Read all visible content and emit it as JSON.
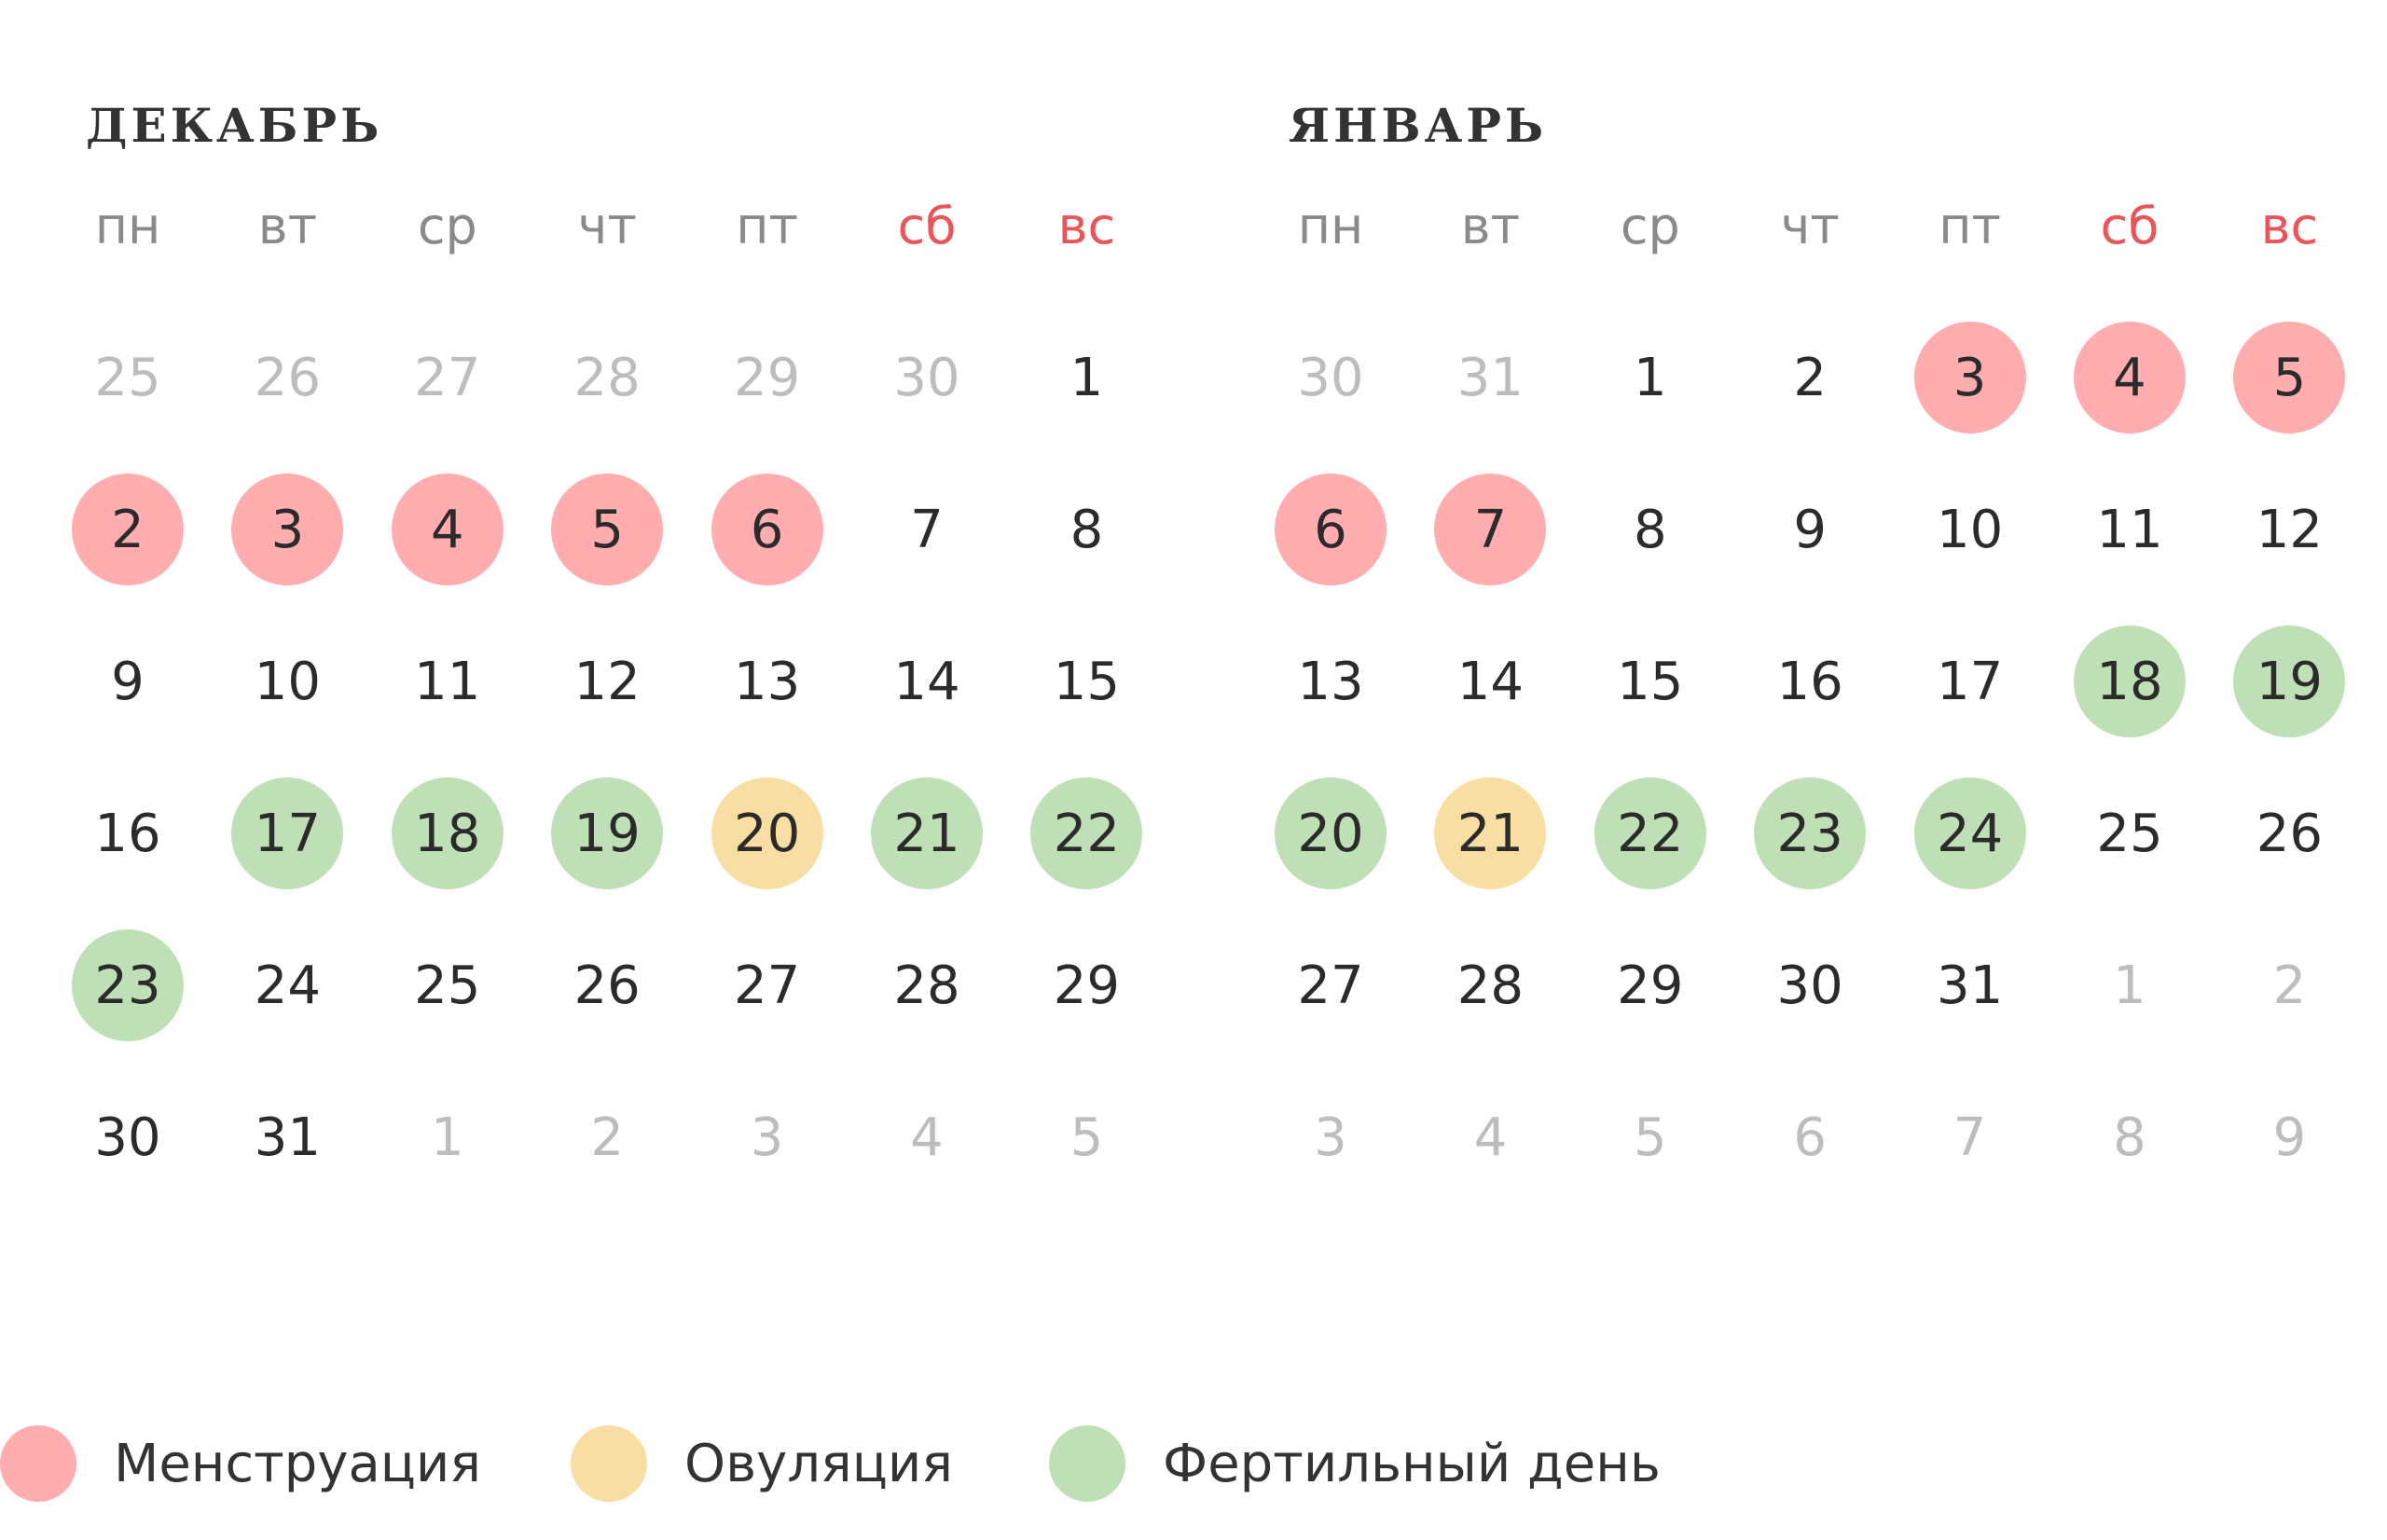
{
  "colors": {
    "menstruation": "#ffadaf",
    "ovulation": "#f9dea3",
    "fertile": "#bfe0b6",
    "weekend_label": "#e8555a",
    "other_month_day": "#bdbdbd",
    "text": "#2b2b2b"
  },
  "weekdays": [
    {
      "label": "пн",
      "weekend": false
    },
    {
      "label": "вт",
      "weekend": false
    },
    {
      "label": "ср",
      "weekend": false
    },
    {
      "label": "чт",
      "weekend": false
    },
    {
      "label": "пт",
      "weekend": false
    },
    {
      "label": "сб",
      "weekend": true
    },
    {
      "label": "вс",
      "weekend": true
    }
  ],
  "months": [
    {
      "id": "december",
      "title": "ДЕКАБРЬ",
      "weeks": [
        [
          {
            "d": "25",
            "other": true
          },
          {
            "d": "26",
            "other": true
          },
          {
            "d": "27",
            "other": true
          },
          {
            "d": "28",
            "other": true
          },
          {
            "d": "29",
            "other": true
          },
          {
            "d": "30",
            "other": true
          },
          {
            "d": "1"
          }
        ],
        [
          {
            "d": "2",
            "mark": "menstruation"
          },
          {
            "d": "3",
            "mark": "menstruation"
          },
          {
            "d": "4",
            "mark": "menstruation"
          },
          {
            "d": "5",
            "mark": "menstruation"
          },
          {
            "d": "6",
            "mark": "menstruation"
          },
          {
            "d": "7"
          },
          {
            "d": "8"
          }
        ],
        [
          {
            "d": "9"
          },
          {
            "d": "10"
          },
          {
            "d": "11"
          },
          {
            "d": "12"
          },
          {
            "d": "13"
          },
          {
            "d": "14"
          },
          {
            "d": "15"
          }
        ],
        [
          {
            "d": "16"
          },
          {
            "d": "17",
            "mark": "fertile"
          },
          {
            "d": "18",
            "mark": "fertile"
          },
          {
            "d": "19",
            "mark": "fertile"
          },
          {
            "d": "20",
            "mark": "ovulation"
          },
          {
            "d": "21",
            "mark": "fertile"
          },
          {
            "d": "22",
            "mark": "fertile"
          }
        ],
        [
          {
            "d": "23",
            "mark": "fertile"
          },
          {
            "d": "24"
          },
          {
            "d": "25"
          },
          {
            "d": "26"
          },
          {
            "d": "27"
          },
          {
            "d": "28"
          },
          {
            "d": "29"
          }
        ],
        [
          {
            "d": "30"
          },
          {
            "d": "31"
          },
          {
            "d": "1",
            "other": true
          },
          {
            "d": "2",
            "other": true
          },
          {
            "d": "3",
            "other": true
          },
          {
            "d": "4",
            "other": true
          },
          {
            "d": "5",
            "other": true
          }
        ]
      ]
    },
    {
      "id": "january",
      "title": "ЯНВАРЬ",
      "weeks": [
        [
          {
            "d": "30",
            "other": true
          },
          {
            "d": "31",
            "other": true
          },
          {
            "d": "1"
          },
          {
            "d": "2"
          },
          {
            "d": "3",
            "mark": "menstruation"
          },
          {
            "d": "4",
            "mark": "menstruation"
          },
          {
            "d": "5",
            "mark": "menstruation"
          }
        ],
        [
          {
            "d": "6",
            "mark": "menstruation"
          },
          {
            "d": "7",
            "mark": "menstruation"
          },
          {
            "d": "8"
          },
          {
            "d": "9"
          },
          {
            "d": "10"
          },
          {
            "d": "11"
          },
          {
            "d": "12"
          }
        ],
        [
          {
            "d": "13"
          },
          {
            "d": "14"
          },
          {
            "d": "15"
          },
          {
            "d": "16"
          },
          {
            "d": "17"
          },
          {
            "d": "18",
            "mark": "fertile"
          },
          {
            "d": "19",
            "mark": "fertile"
          }
        ],
        [
          {
            "d": "20",
            "mark": "fertile"
          },
          {
            "d": "21",
            "mark": "ovulation"
          },
          {
            "d": "22",
            "mark": "fertile"
          },
          {
            "d": "23",
            "mark": "fertile"
          },
          {
            "d": "24",
            "mark": "fertile"
          },
          {
            "d": "25"
          },
          {
            "d": "26"
          }
        ],
        [
          {
            "d": "27"
          },
          {
            "d": "28"
          },
          {
            "d": "29"
          },
          {
            "d": "30"
          },
          {
            "d": "31"
          },
          {
            "d": "1",
            "other": true
          },
          {
            "d": "2",
            "other": true
          }
        ],
        [
          {
            "d": "3",
            "other": true
          },
          {
            "d": "4",
            "other": true
          },
          {
            "d": "5",
            "other": true
          },
          {
            "d": "6",
            "other": true
          },
          {
            "d": "7",
            "other": true
          },
          {
            "d": "8",
            "other": true
          },
          {
            "d": "9",
            "other": true
          }
        ]
      ]
    }
  ],
  "legend": [
    {
      "key": "menstruation",
      "label": "Менструация"
    },
    {
      "key": "ovulation",
      "label": "Овуляция"
    },
    {
      "key": "fertile",
      "label": "Фертильный день"
    }
  ]
}
